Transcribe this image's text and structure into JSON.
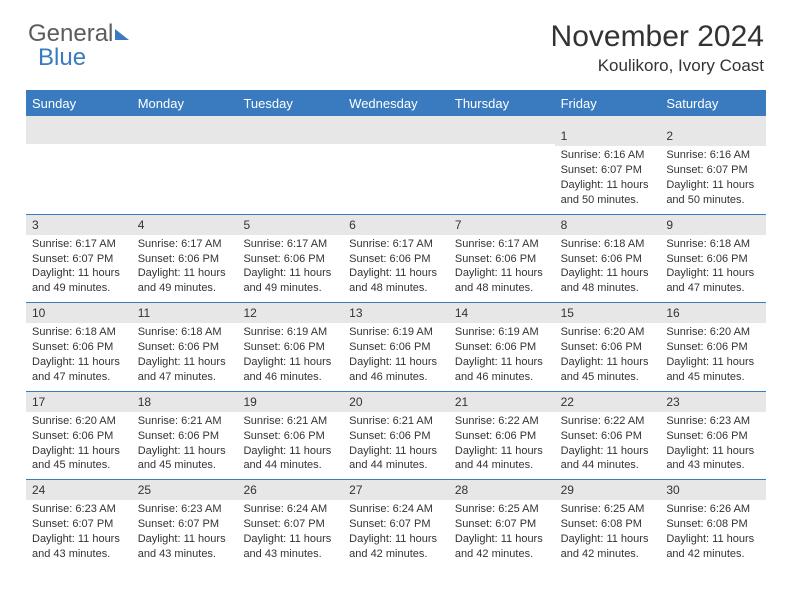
{
  "logo": {
    "text1": "General",
    "text2": "Blue"
  },
  "title": "November 2024",
  "location": "Koulikoro, Ivory Coast",
  "colors": {
    "brand_blue": "#3a7bbf",
    "header_text": "#333333",
    "row_alt_bg": "#e7e7e7",
    "background": "#ffffff",
    "logo_gray": "#5c5c5c"
  },
  "typography": {
    "month_title_fontsize": 30,
    "location_fontsize": 17,
    "dow_fontsize": 13,
    "daynum_fontsize": 12,
    "body_fontsize": 11,
    "logo_fontsize": 24
  },
  "days_of_week": [
    "Sunday",
    "Monday",
    "Tuesday",
    "Wednesday",
    "Thursday",
    "Friday",
    "Saturday"
  ],
  "weeks": [
    [
      {
        "n": "",
        "sunrise": "",
        "sunset": "",
        "daylight": ""
      },
      {
        "n": "",
        "sunrise": "",
        "sunset": "",
        "daylight": ""
      },
      {
        "n": "",
        "sunrise": "",
        "sunset": "",
        "daylight": ""
      },
      {
        "n": "",
        "sunrise": "",
        "sunset": "",
        "daylight": ""
      },
      {
        "n": "",
        "sunrise": "",
        "sunset": "",
        "daylight": ""
      },
      {
        "n": "1",
        "sunrise": "Sunrise: 6:16 AM",
        "sunset": "Sunset: 6:07 PM",
        "daylight": "Daylight: 11 hours and 50 minutes."
      },
      {
        "n": "2",
        "sunrise": "Sunrise: 6:16 AM",
        "sunset": "Sunset: 6:07 PM",
        "daylight": "Daylight: 11 hours and 50 minutes."
      }
    ],
    [
      {
        "n": "3",
        "sunrise": "Sunrise: 6:17 AM",
        "sunset": "Sunset: 6:07 PM",
        "daylight": "Daylight: 11 hours and 49 minutes."
      },
      {
        "n": "4",
        "sunrise": "Sunrise: 6:17 AM",
        "sunset": "Sunset: 6:06 PM",
        "daylight": "Daylight: 11 hours and 49 minutes."
      },
      {
        "n": "5",
        "sunrise": "Sunrise: 6:17 AM",
        "sunset": "Sunset: 6:06 PM",
        "daylight": "Daylight: 11 hours and 49 minutes."
      },
      {
        "n": "6",
        "sunrise": "Sunrise: 6:17 AM",
        "sunset": "Sunset: 6:06 PM",
        "daylight": "Daylight: 11 hours and 48 minutes."
      },
      {
        "n": "7",
        "sunrise": "Sunrise: 6:17 AM",
        "sunset": "Sunset: 6:06 PM",
        "daylight": "Daylight: 11 hours and 48 minutes."
      },
      {
        "n": "8",
        "sunrise": "Sunrise: 6:18 AM",
        "sunset": "Sunset: 6:06 PM",
        "daylight": "Daylight: 11 hours and 48 minutes."
      },
      {
        "n": "9",
        "sunrise": "Sunrise: 6:18 AM",
        "sunset": "Sunset: 6:06 PM",
        "daylight": "Daylight: 11 hours and 47 minutes."
      }
    ],
    [
      {
        "n": "10",
        "sunrise": "Sunrise: 6:18 AM",
        "sunset": "Sunset: 6:06 PM",
        "daylight": "Daylight: 11 hours and 47 minutes."
      },
      {
        "n": "11",
        "sunrise": "Sunrise: 6:18 AM",
        "sunset": "Sunset: 6:06 PM",
        "daylight": "Daylight: 11 hours and 47 minutes."
      },
      {
        "n": "12",
        "sunrise": "Sunrise: 6:19 AM",
        "sunset": "Sunset: 6:06 PM",
        "daylight": "Daylight: 11 hours and 46 minutes."
      },
      {
        "n": "13",
        "sunrise": "Sunrise: 6:19 AM",
        "sunset": "Sunset: 6:06 PM",
        "daylight": "Daylight: 11 hours and 46 minutes."
      },
      {
        "n": "14",
        "sunrise": "Sunrise: 6:19 AM",
        "sunset": "Sunset: 6:06 PM",
        "daylight": "Daylight: 11 hours and 46 minutes."
      },
      {
        "n": "15",
        "sunrise": "Sunrise: 6:20 AM",
        "sunset": "Sunset: 6:06 PM",
        "daylight": "Daylight: 11 hours and 45 minutes."
      },
      {
        "n": "16",
        "sunrise": "Sunrise: 6:20 AM",
        "sunset": "Sunset: 6:06 PM",
        "daylight": "Daylight: 11 hours and 45 minutes."
      }
    ],
    [
      {
        "n": "17",
        "sunrise": "Sunrise: 6:20 AM",
        "sunset": "Sunset: 6:06 PM",
        "daylight": "Daylight: 11 hours and 45 minutes."
      },
      {
        "n": "18",
        "sunrise": "Sunrise: 6:21 AM",
        "sunset": "Sunset: 6:06 PM",
        "daylight": "Daylight: 11 hours and 45 minutes."
      },
      {
        "n": "19",
        "sunrise": "Sunrise: 6:21 AM",
        "sunset": "Sunset: 6:06 PM",
        "daylight": "Daylight: 11 hours and 44 minutes."
      },
      {
        "n": "20",
        "sunrise": "Sunrise: 6:21 AM",
        "sunset": "Sunset: 6:06 PM",
        "daylight": "Daylight: 11 hours and 44 minutes."
      },
      {
        "n": "21",
        "sunrise": "Sunrise: 6:22 AM",
        "sunset": "Sunset: 6:06 PM",
        "daylight": "Daylight: 11 hours and 44 minutes."
      },
      {
        "n": "22",
        "sunrise": "Sunrise: 6:22 AM",
        "sunset": "Sunset: 6:06 PM",
        "daylight": "Daylight: 11 hours and 44 minutes."
      },
      {
        "n": "23",
        "sunrise": "Sunrise: 6:23 AM",
        "sunset": "Sunset: 6:06 PM",
        "daylight": "Daylight: 11 hours and 43 minutes."
      }
    ],
    [
      {
        "n": "24",
        "sunrise": "Sunrise: 6:23 AM",
        "sunset": "Sunset: 6:07 PM",
        "daylight": "Daylight: 11 hours and 43 minutes."
      },
      {
        "n": "25",
        "sunrise": "Sunrise: 6:23 AM",
        "sunset": "Sunset: 6:07 PM",
        "daylight": "Daylight: 11 hours and 43 minutes."
      },
      {
        "n": "26",
        "sunrise": "Sunrise: 6:24 AM",
        "sunset": "Sunset: 6:07 PM",
        "daylight": "Daylight: 11 hours and 43 minutes."
      },
      {
        "n": "27",
        "sunrise": "Sunrise: 6:24 AM",
        "sunset": "Sunset: 6:07 PM",
        "daylight": "Daylight: 11 hours and 42 minutes."
      },
      {
        "n": "28",
        "sunrise": "Sunrise: 6:25 AM",
        "sunset": "Sunset: 6:07 PM",
        "daylight": "Daylight: 11 hours and 42 minutes."
      },
      {
        "n": "29",
        "sunrise": "Sunrise: 6:25 AM",
        "sunset": "Sunset: 6:08 PM",
        "daylight": "Daylight: 11 hours and 42 minutes."
      },
      {
        "n": "30",
        "sunrise": "Sunrise: 6:26 AM",
        "sunset": "Sunset: 6:08 PM",
        "daylight": "Daylight: 11 hours and 42 minutes."
      }
    ]
  ]
}
